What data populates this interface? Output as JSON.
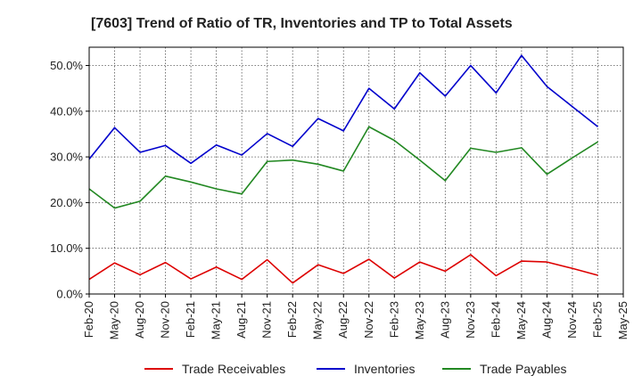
{
  "chart_data": {
    "type": "line",
    "title": "[7603]  Trend of Ratio of TR, Inventories and TP to Total Assets",
    "xlabel": "",
    "ylabel": "",
    "categories": [
      "Feb-20",
      "May-20",
      "Aug-20",
      "Nov-20",
      "Feb-21",
      "May-21",
      "Aug-21",
      "Nov-21",
      "Feb-22",
      "May-22",
      "Aug-22",
      "Nov-22",
      "Feb-23",
      "May-23",
      "Aug-23",
      "Nov-23",
      "Feb-24",
      "May-24",
      "Aug-24",
      "Nov-24",
      "Feb-25",
      "May-25"
    ],
    "ylim": [
      0,
      54
    ],
    "yticks": [
      0,
      10,
      20,
      30,
      40,
      50
    ],
    "ytick_labels": [
      "0.0%",
      "10.0%",
      "20.0%",
      "30.0%",
      "40.0%",
      "50.0%"
    ],
    "grid": true,
    "legend_position": "bottom",
    "series": [
      {
        "name": "Trade Receivables",
        "color": "#dd0000",
        "values": [
          3.2,
          6.8,
          4.2,
          6.9,
          3.3,
          5.9,
          3.2,
          7.5,
          2.4,
          6.4,
          4.5,
          7.6,
          3.5,
          7.0,
          5.0,
          8.6,
          4.0,
          7.2,
          7.0,
          5.6,
          4.1,
          null
        ]
      },
      {
        "name": "Inventories",
        "color": "#0000cc",
        "values": [
          29.5,
          36.4,
          31.0,
          32.5,
          28.6,
          32.6,
          30.4,
          35.1,
          32.3,
          38.4,
          35.7,
          45.0,
          40.5,
          48.4,
          43.3,
          50.0,
          44.0,
          52.2,
          45.4,
          41.0,
          36.6,
          null
        ]
      },
      {
        "name": "Trade Payables",
        "color": "#228822",
        "values": [
          23.0,
          18.8,
          20.3,
          25.8,
          24.5,
          23.0,
          21.9,
          29.0,
          29.3,
          28.4,
          26.9,
          36.6,
          33.6,
          29.3,
          24.8,
          31.9,
          31.0,
          32.0,
          26.2,
          29.8,
          33.3,
          null
        ]
      }
    ]
  }
}
